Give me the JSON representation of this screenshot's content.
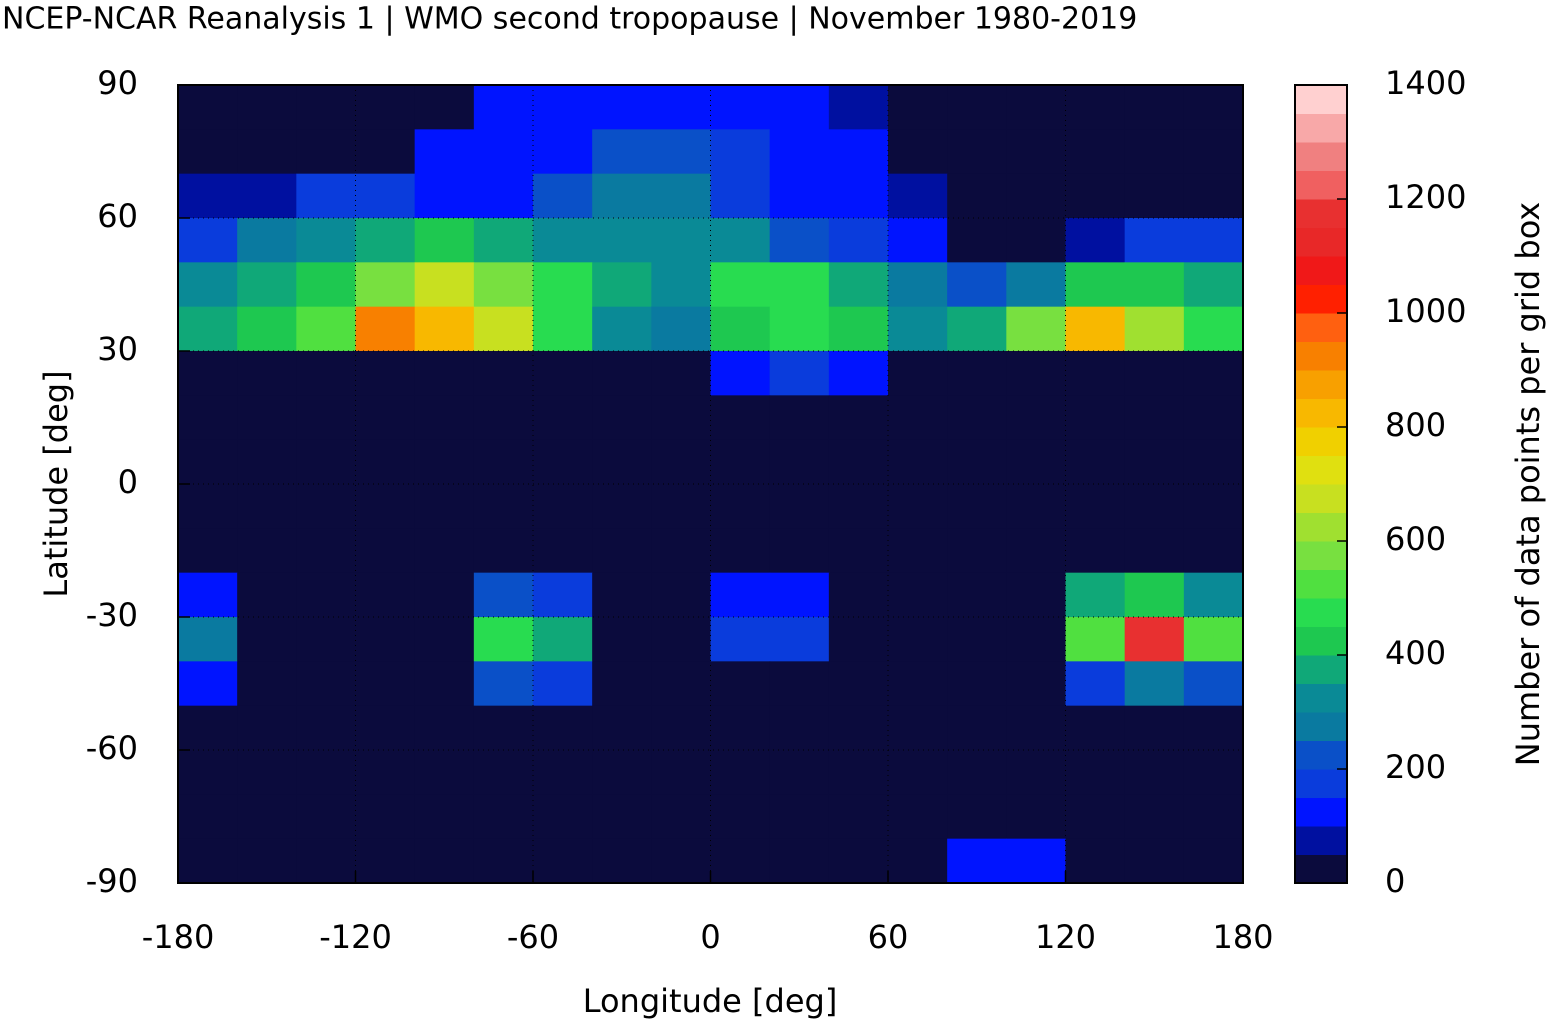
{
  "chart_data": {
    "type": "heatmap",
    "title": "NCEP-NCAR Reanalysis 1 | WMO second tropopause | November 1980-2019",
    "x_label": "Longitude [deg]",
    "y_label": "Latitude [deg]",
    "colorbar_label": "Number of data points per grid box",
    "xlim": [
      -180,
      180
    ],
    "ylim": [
      -90,
      90
    ],
    "xticks": [
      -180,
      -120,
      -60,
      0,
      60,
      120,
      180
    ],
    "yticks": [
      -90,
      -60,
      -30,
      0,
      30,
      60,
      90
    ],
    "grid": true,
    "x_bins": [
      -180,
      -160,
      -140,
      -120,
      -100,
      -80,
      -60,
      -40,
      -20,
      0,
      20,
      40,
      60,
      80,
      100,
      120,
      140,
      160,
      180
    ],
    "y_bins": [
      90,
      80,
      70,
      60,
      50,
      40,
      30,
      20,
      10,
      0,
      -10,
      -20,
      -30,
      -40,
      -50,
      -60,
      -70,
      -80,
      -90
    ],
    "z": [
      [
        30,
        30,
        30,
        30,
        30,
        120,
        120,
        120,
        130,
        120,
        120,
        80,
        30,
        30,
        30,
        30,
        30,
        30
      ],
      [
        30,
        30,
        30,
        30,
        100,
        120,
        140,
        200,
        200,
        150,
        120,
        100,
        30,
        30,
        30,
        30,
        30,
        30
      ],
      [
        60,
        80,
        150,
        150,
        100,
        130,
        200,
        280,
        250,
        150,
        130,
        100,
        50,
        30,
        30,
        30,
        30,
        30
      ],
      [
        180,
        250,
        300,
        350,
        400,
        350,
        300,
        300,
        320,
        300,
        200,
        150,
        100,
        30,
        30,
        80,
        150,
        180
      ],
      [
        300,
        350,
        400,
        550,
        650,
        550,
        450,
        350,
        320,
        450,
        450,
        350,
        250,
        200,
        250,
        400,
        400,
        350
      ],
      [
        350,
        400,
        500,
        900,
        800,
        650,
        450,
        300,
        250,
        400,
        450,
        400,
        300,
        350,
        550,
        800,
        600,
        450
      ],
      [
        30,
        30,
        30,
        30,
        30,
        30,
        30,
        30,
        30,
        120,
        150,
        120,
        30,
        30,
        30,
        30,
        30,
        30
      ],
      [
        30,
        30,
        30,
        30,
        30,
        30,
        30,
        30,
        30,
        30,
        30,
        30,
        30,
        30,
        30,
        30,
        30,
        30
      ],
      [
        30,
        30,
        30,
        30,
        30,
        30,
        30,
        30,
        30,
        30,
        30,
        30,
        30,
        30,
        30,
        30,
        30,
        30
      ],
      [
        30,
        30,
        30,
        30,
        30,
        30,
        30,
        30,
        30,
        30,
        30,
        30,
        30,
        30,
        30,
        30,
        30,
        30
      ],
      [
        30,
        30,
        30,
        30,
        30,
        30,
        30,
        30,
        30,
        30,
        30,
        30,
        30,
        30,
        30,
        30,
        30,
        30
      ],
      [
        100,
        30,
        30,
        30,
        30,
        200,
        150,
        30,
        30,
        120,
        100,
        30,
        30,
        30,
        30,
        350,
        400,
        300
      ],
      [
        250,
        30,
        30,
        30,
        30,
        450,
        350,
        30,
        30,
        150,
        150,
        30,
        30,
        30,
        30,
        500,
        1150,
        500
      ],
      [
        120,
        30,
        30,
        30,
        30,
        200,
        150,
        30,
        30,
        30,
        30,
        30,
        30,
        30,
        30,
        150,
        250,
        200
      ],
      [
        30,
        30,
        30,
        30,
        30,
        30,
        30,
        30,
        30,
        30,
        30,
        30,
        30,
        30,
        30,
        30,
        30,
        30
      ],
      [
        30,
        30,
        30,
        30,
        30,
        30,
        30,
        30,
        30,
        30,
        30,
        30,
        30,
        30,
        30,
        30,
        30,
        30
      ],
      [
        30,
        30,
        30,
        30,
        30,
        30,
        30,
        30,
        30,
        30,
        30,
        30,
        30,
        30,
        30,
        30,
        30,
        30
      ],
      [
        30,
        30,
        30,
        30,
        30,
        30,
        30,
        30,
        30,
        30,
        30,
        30,
        30,
        120,
        100,
        30,
        30,
        30
      ]
    ],
    "clim": [
      0,
      1400
    ],
    "colorbar_ticks": [
      0,
      200,
      400,
      600,
      800,
      1000,
      1200,
      1400
    ],
    "colors": [
      "#0b0b3d",
      "#0010a0",
      "#0014ff",
      "#0a3cdc",
      "#0a50c8",
      "#0a7aa0",
      "#0a8a96",
      "#10a878",
      "#1ec850",
      "#28dc50",
      "#50e040",
      "#78e040",
      "#a0e030",
      "#c8e020",
      "#e0e010",
      "#f0d000",
      "#f8b800",
      "#f8a000",
      "#f88000",
      "#ff6010",
      "#ff2000",
      "#f01818",
      "#e82828",
      "#e83030",
      "#f06060",
      "#f08080",
      "#f8a8a8",
      "#ffd0d0"
    ]
  }
}
